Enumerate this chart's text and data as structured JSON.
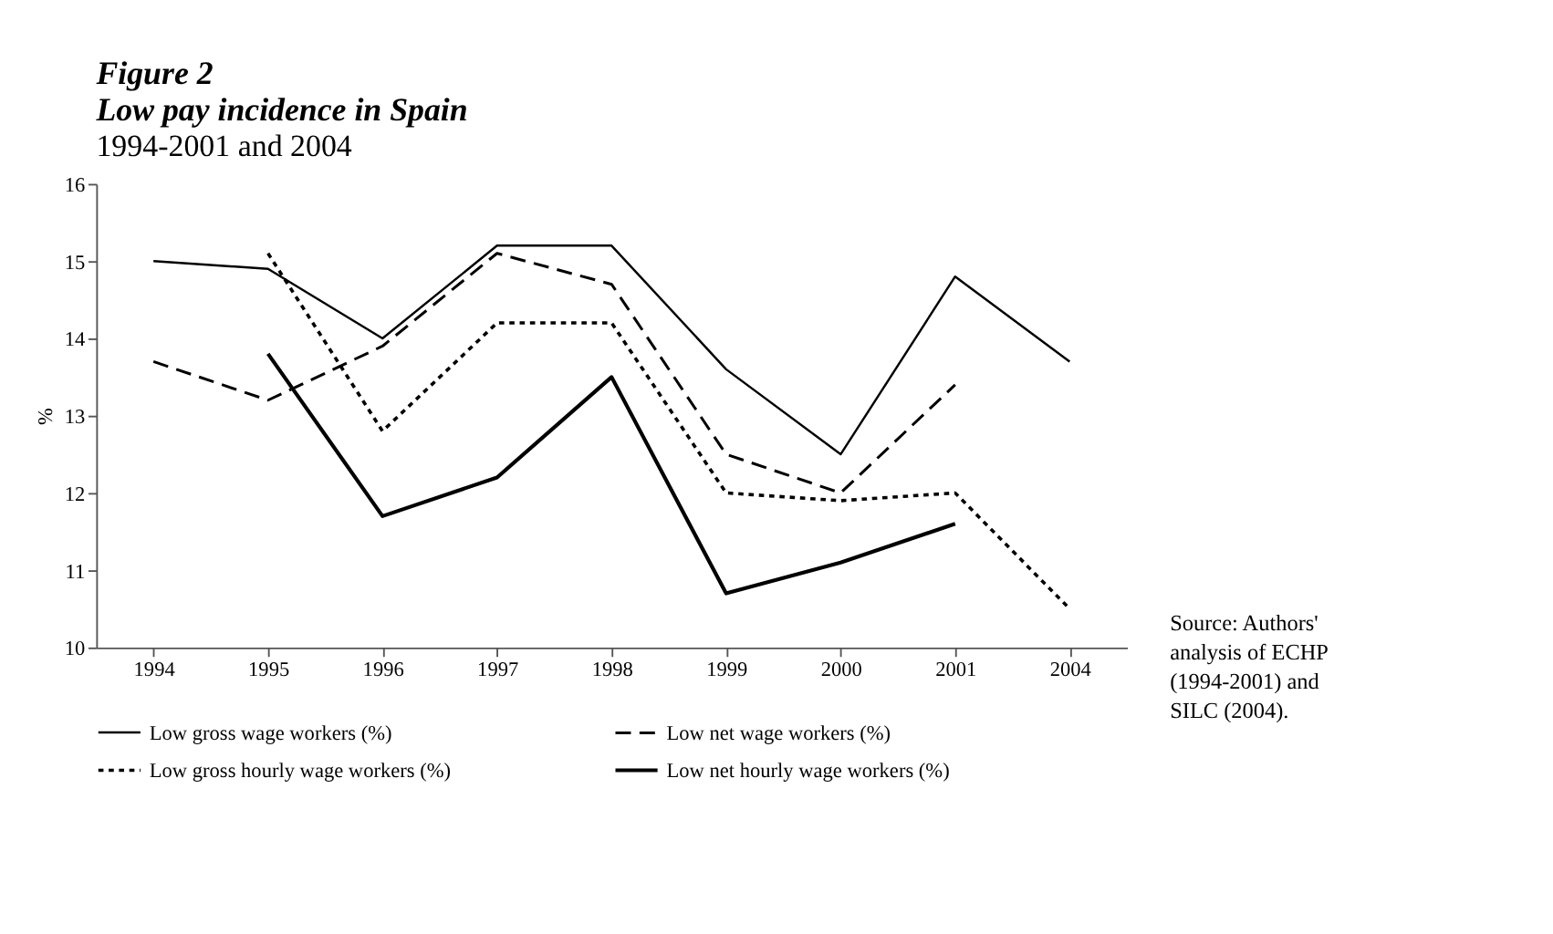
{
  "chart_data": {
    "type": "line",
    "title": "Low pay incidence in Spain",
    "subtitle": "1994-2001 and 2004",
    "ylabel": "%",
    "categories": [
      "1994",
      "1995",
      "1996",
      "1997",
      "1998",
      "1999",
      "2000",
      "2001",
      "2004"
    ],
    "series": [
      {
        "name": "Low gross wage workers (%)",
        "color": "#000000",
        "line_style": "solid",
        "values": [
          15.0,
          14.9,
          14.0,
          15.2,
          15.2,
          13.6,
          12.5,
          14.8,
          13.7
        ]
      },
      {
        "name": "Low net wage workers (%)",
        "color": "#000000",
        "line_style": "dashed",
        "values": [
          13.7,
          13.2,
          13.9,
          15.1,
          14.7,
          12.5,
          12.0,
          13.4,
          null
        ]
      },
      {
        "name": "Low gross hourly wage workers (%)",
        "color": "#000000",
        "line_style": "dotted",
        "values": [
          null,
          15.1,
          12.8,
          14.2,
          14.2,
          12.0,
          11.9,
          12.0,
          10.5
        ]
      },
      {
        "name": "Low net hourly wage workers (%)",
        "color": "#000000",
        "line_style": "solid",
        "values": [
          null,
          13.8,
          11.7,
          12.2,
          13.5,
          10.7,
          11.1,
          11.6,
          null
        ]
      }
    ],
    "ylim": [
      10,
      16
    ],
    "yticks": [
      10,
      11,
      12,
      13,
      14,
      15,
      16
    ],
    "grid": false,
    "legend": "bottom",
    "marker": "none",
    "annotations": [
      "Figure 2",
      "Source: Authors' analysis of ECHP (1994-2001) and SILC (2004)."
    ]
  }
}
